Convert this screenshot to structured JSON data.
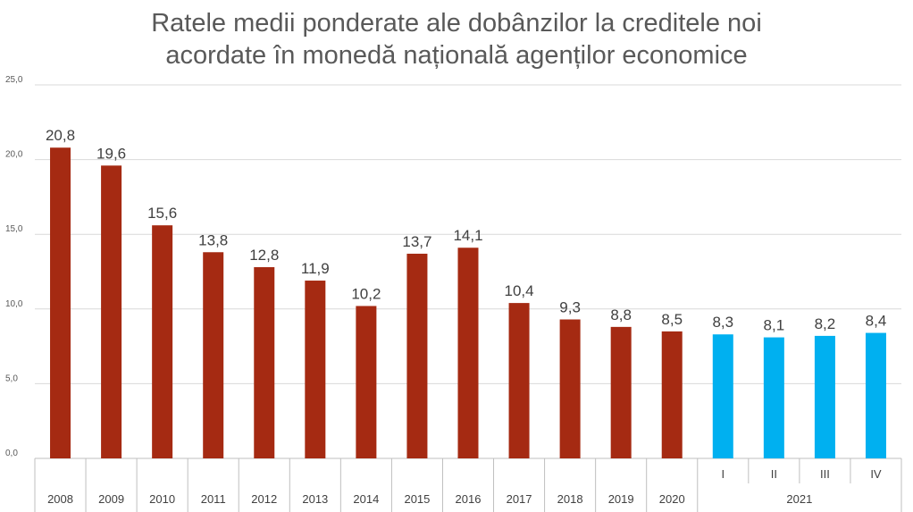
{
  "chart_data": {
    "type": "bar",
    "title_lines": [
      "Ratele medii ponderate ale dobânzilor la creditele noi",
      "acordate în monedă națională agenților economice"
    ],
    "xlabel": "",
    "ylabel": "",
    "ylim": [
      0,
      25
    ],
    "yticks": [
      "0,0",
      "5,0",
      "10,0",
      "15,0",
      "20,0",
      "25,0"
    ],
    "grid": true,
    "legend": "none",
    "categories": [
      "2008",
      "2009",
      "2010",
      "2011",
      "2012",
      "2013",
      "2014",
      "2015",
      "2016",
      "2017",
      "2018",
      "2019",
      "2020",
      "I",
      "II",
      "III",
      "IV"
    ],
    "group_labels": [
      {
        "label": "2021",
        "categories": [
          "I",
          "II",
          "III",
          "IV"
        ]
      }
    ],
    "values": [
      20.8,
      19.6,
      15.6,
      13.8,
      12.8,
      11.9,
      10.2,
      13.7,
      14.1,
      10.4,
      9.3,
      8.8,
      8.5,
      8.3,
      8.1,
      8.2,
      8.4
    ],
    "value_labels": [
      "20,8",
      "19,6",
      "15,6",
      "13,8",
      "12,8",
      "11,9",
      "10,2",
      "13,7",
      "14,1",
      "10,4",
      "9,3",
      "8,8",
      "8,5",
      "8,3",
      "8,1",
      "8,2",
      "8,4"
    ],
    "colors": {
      "annual": "#A52A12",
      "quarterly": "#00B0F0",
      "grid": "#D9D9D9",
      "axis": "#BFBFBF"
    }
  }
}
